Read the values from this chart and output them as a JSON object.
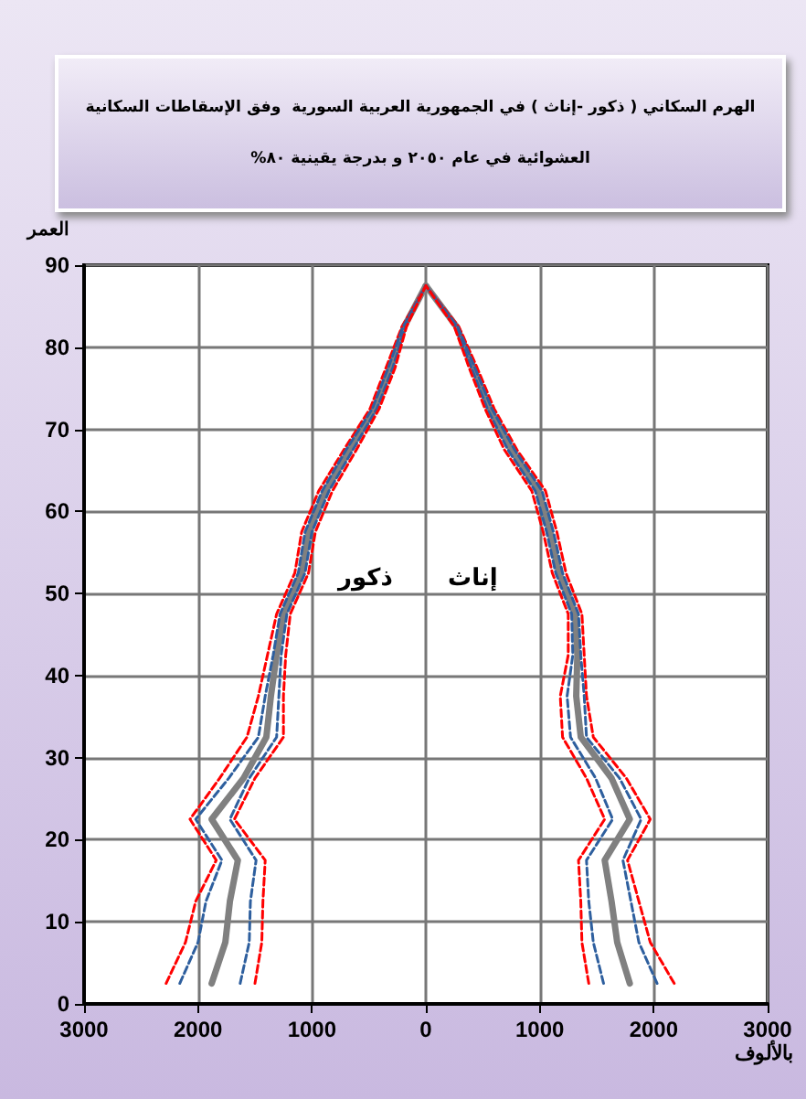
{
  "chart_data": {
    "type": "line",
    "orientation": "horizontal",
    "title": "الهرم السكاني ( ذكور -إناث ) في الجمهورية العربية السورية  وفق الإسقاطات السكانية\nالعشوائية في عام ٢٠٥٠ و بدرجة يقينية ٨٠%",
    "xlabel": "بالألوف",
    "ylabel": "العمر",
    "annotations": [
      "ذكور",
      "إناث"
    ],
    "x": [
      2.5,
      7.5,
      12.5,
      17.5,
      22.5,
      27.5,
      32.5,
      37.5,
      42.5,
      47.5,
      52.5,
      57.5,
      62.5,
      67.5,
      72.5,
      77.5,
      82.5,
      87.5
    ],
    "series": [
      {
        "color": "#ff0000",
        "line_style": "dashed",
        "values": [
          -2280,
          -2110,
          -2020,
          -1840,
          -2070,
          -1810,
          -1570,
          -1470,
          -1390,
          -1310,
          -1150,
          -1090,
          -940,
          -720,
          -490,
          -350,
          -210,
          0
        ]
      },
      {
        "color": "#2e5f9e",
        "line_style": "dashed",
        "values": [
          -2160,
          -2000,
          -1930,
          -1790,
          -2020,
          -1730,
          -1470,
          -1410,
          -1340,
          -1280,
          -1120,
          -1060,
          -910,
          -700,
          -470,
          -330,
          -200,
          0
        ]
      },
      {
        "color": "#808080",
        "line_style": "solid",
        "values": [
          -1880,
          -1760,
          -1720,
          -1650,
          -1880,
          -1600,
          -1400,
          -1360,
          -1310,
          -1250,
          -1090,
          -1030,
          -880,
          -670,
          -450,
          -310,
          -190,
          0
        ]
      },
      {
        "color": "#2e5f9e",
        "line_style": "dashed",
        "values": [
          -1630,
          -1550,
          -1540,
          -1490,
          -1720,
          -1550,
          -1310,
          -1290,
          -1270,
          -1220,
          -1060,
          -1000,
          -850,
          -640,
          -430,
          -290,
          -180,
          0
        ]
      },
      {
        "color": "#ff0000",
        "line_style": "dashed",
        "values": [
          -1500,
          -1440,
          -1430,
          -1410,
          -1680,
          -1500,
          -1250,
          -1250,
          -1230,
          -1190,
          -1030,
          -970,
          -820,
          -610,
          -410,
          -270,
          -170,
          0
        ]
      },
      {
        "color": "#ff0000",
        "line_style": "dashed",
        "values": [
          2180,
          1970,
          1870,
          1770,
          1970,
          1760,
          1470,
          1410,
          1390,
          1370,
          1230,
          1150,
          1050,
          800,
          600,
          450,
          290,
          0
        ]
      },
      {
        "color": "#2e5f9e",
        "line_style": "dashed",
        "values": [
          2030,
          1870,
          1800,
          1730,
          1890,
          1700,
          1410,
          1390,
          1360,
          1340,
          1200,
          1120,
          1020,
          780,
          580,
          430,
          280,
          0
        ]
      },
      {
        "color": "#808080",
        "line_style": "solid",
        "values": [
          1790,
          1680,
          1630,
          1570,
          1790,
          1630,
          1360,
          1320,
          1330,
          1310,
          1170,
          1090,
          990,
          750,
          560,
          420,
          270,
          0
        ]
      },
      {
        "color": "#2e5f9e",
        "line_style": "dashed",
        "values": [
          1560,
          1470,
          1430,
          1410,
          1640,
          1490,
          1270,
          1240,
          1290,
          1280,
          1140,
          1060,
          960,
          720,
          540,
          400,
          260,
          0
        ]
      },
      {
        "color": "#ff0000",
        "line_style": "dashed",
        "values": [
          1430,
          1370,
          1360,
          1340,
          1570,
          1410,
          1200,
          1180,
          1250,
          1250,
          1110,
          1030,
          930,
          690,
          520,
          380,
          250,
          0
        ]
      }
    ],
    "xlim": [
      -3000,
      3000
    ],
    "xticks": [
      {
        "value": -3000,
        "label": "3000"
      },
      {
        "value": -2000,
        "label": "2000"
      },
      {
        "value": -1000,
        "label": "1000"
      },
      0,
      1000,
      2000,
      3000
    ],
    "ylim": [
      0,
      90
    ],
    "yticks": [
      0,
      10,
      20,
      30,
      40,
      50,
      60,
      70,
      80,
      90
    ],
    "grid": true,
    "marker": "none"
  }
}
